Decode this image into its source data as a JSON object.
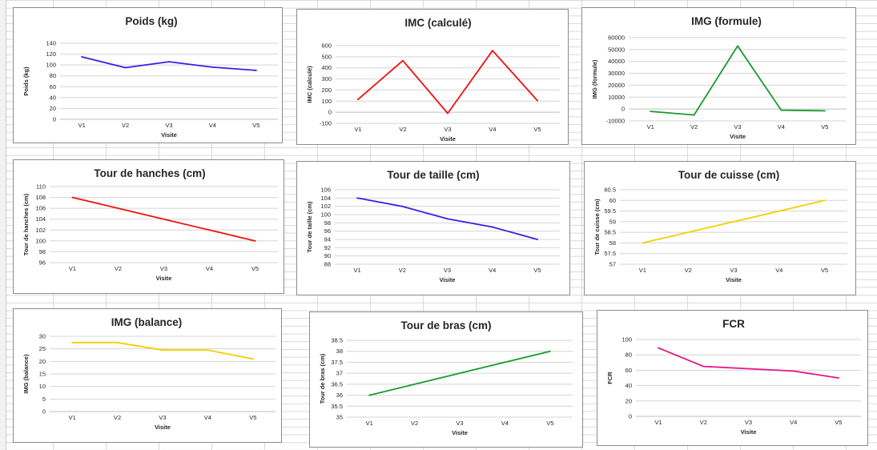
{
  "chart_data": [
    {
      "id": "poids",
      "type": "line",
      "title": "Poids (kg)",
      "xlabel": "Visite",
      "ylabel": "Poids (kg)",
      "categories": [
        "V1",
        "V2",
        "V3",
        "V4",
        "V5"
      ],
      "series": [
        {
          "values": [
            115,
            95,
            106,
            96,
            90
          ],
          "color": "#3b1ee6"
        }
      ],
      "ylim": [
        0,
        140
      ],
      "yticks": [
        0,
        20,
        40,
        60,
        80,
        100,
        120,
        140
      ],
      "ytick_labels": [
        "0",
        "20",
        "40",
        "60",
        "80",
        "100",
        "120",
        "140"
      ],
      "grid": true,
      "legend": "none"
    },
    {
      "id": "imc",
      "type": "line",
      "title": "IMC (calculé)",
      "xlabel": "Visite",
      "ylabel": "IMC (calculé)",
      "categories": [
        "V1",
        "V2",
        "V3",
        "V4",
        "V5"
      ],
      "series": [
        {
          "values": [
            115,
            465,
            -10,
            555,
            105
          ],
          "color": "#ee1111"
        }
      ],
      "ylim": [
        -100,
        600
      ],
      "yticks": [
        -100,
        0,
        100,
        200,
        300,
        400,
        500,
        600
      ],
      "ytick_labels": [
        "-100",
        "0",
        "100",
        "200",
        "300",
        "400",
        "500",
        "600"
      ],
      "grid": true,
      "legend": "none"
    },
    {
      "id": "img_formule",
      "type": "line",
      "title": "IMG (formule)",
      "xlabel": "Visite",
      "ylabel": "IMG (formule)",
      "categories": [
        "V1",
        "V2",
        "V3",
        "V4",
        "V5"
      ],
      "series": [
        {
          "values": [
            -2000,
            -5000,
            53000,
            -1000,
            -1500
          ],
          "color": "#169c2a"
        }
      ],
      "ylim": [
        -10000,
        60000
      ],
      "yticks": [
        -10000,
        0,
        10000,
        20000,
        30000,
        40000,
        50000,
        60000
      ],
      "ytick_labels": [
        "-10000",
        "0",
        "10000",
        "20000",
        "30000",
        "40000",
        "50000",
        "60000"
      ],
      "grid": true,
      "legend": "none"
    },
    {
      "id": "hanches",
      "type": "line",
      "title": "Tour de hanches (cm)",
      "xlabel": "Visite",
      "ylabel": "Tour de hanches (cm)",
      "categories": [
        "V1",
        "V2",
        "V3",
        "V4",
        "V5"
      ],
      "series": [
        {
          "values": [
            108,
            106,
            104,
            102,
            100
          ],
          "color": "#ee1111"
        }
      ],
      "ylim": [
        96,
        110
      ],
      "yticks": [
        96,
        98,
        100,
        102,
        104,
        106,
        108,
        110
      ],
      "ytick_labels": [
        "96",
        "98",
        "100",
        "102",
        "104",
        "106",
        "108",
        "110"
      ],
      "grid": true,
      "legend": "none"
    },
    {
      "id": "taille",
      "type": "line",
      "title": "Tour de taille (cm)",
      "xlabel": "Visite",
      "ylabel": "Tour de taille (cm)",
      "categories": [
        "V1",
        "V2",
        "V3",
        "V4",
        "V5"
      ],
      "series": [
        {
          "values": [
            104,
            102,
            99,
            97,
            94
          ],
          "color": "#3b1ee6"
        }
      ],
      "ylim": [
        88,
        106
      ],
      "yticks": [
        88,
        90,
        92,
        94,
        96,
        98,
        100,
        102,
        104,
        106
      ],
      "ytick_labels": [
        "88",
        "90",
        "92",
        "94",
        "96",
        "98",
        "100",
        "102",
        "104",
        "106"
      ],
      "grid": true,
      "legend": "none"
    },
    {
      "id": "cuisse",
      "type": "line",
      "title": "Tour de cuisse (cm)",
      "xlabel": "Visite",
      "ylabel": "Tour de cuisse (cm)",
      "categories": [
        "V1",
        "V2",
        "V3",
        "V4",
        "V5"
      ],
      "series": [
        {
          "values": [
            58,
            58.5,
            59,
            59.5,
            60
          ],
          "color": "#f2d000"
        }
      ],
      "ylim": [
        57,
        60.5
      ],
      "yticks": [
        57,
        57.5,
        58,
        58.5,
        59,
        59.5,
        60,
        60.5
      ],
      "ytick_labels": [
        "57",
        "57.5",
        "58",
        "58.5",
        "59",
        "59.5",
        "60",
        "60.5"
      ],
      "grid": true,
      "legend": "none"
    },
    {
      "id": "img_balance",
      "type": "line",
      "title": "IMG (balance)",
      "xlabel": "Visite",
      "ylabel": "IMG (balance)",
      "categories": [
        "V1",
        "V2",
        "V3",
        "V4",
        "V5"
      ],
      "series": [
        {
          "values": [
            27.5,
            27.5,
            24.5,
            24.5,
            21
          ],
          "color": "#f2d000"
        }
      ],
      "ylim": [
        0,
        30
      ],
      "yticks": [
        0,
        5,
        10,
        15,
        20,
        25,
        30
      ],
      "ytick_labels": [
        "0",
        "5",
        "10",
        "15",
        "20",
        "25",
        "30"
      ],
      "grid": true,
      "legend": "none"
    },
    {
      "id": "bras",
      "type": "line",
      "title": "Tour de bras (cm)",
      "xlabel": "Visite",
      "ylabel": "Tour de bras (cm)",
      "categories": [
        "V1",
        "V2",
        "V3",
        "V4",
        "V5"
      ],
      "series": [
        {
          "values": [
            36,
            36.5,
            37,
            37.5,
            38
          ],
          "color": "#169c2a"
        }
      ],
      "ylim": [
        35,
        38.5
      ],
      "yticks": [
        35,
        35.5,
        36,
        36.5,
        37,
        37.5,
        38,
        38.5
      ],
      "ytick_labels": [
        "35",
        "35.5",
        "36",
        "36.5",
        "37",
        "37.5",
        "38",
        "38.5"
      ],
      "grid": true,
      "legend": "none"
    },
    {
      "id": "fcr",
      "type": "line",
      "title": "FCR",
      "xlabel": "Visite",
      "ylabel": "FCR",
      "categories": [
        "V1",
        "V2",
        "V3",
        "V4",
        "V5"
      ],
      "series": [
        {
          "values": [
            89,
            65,
            62,
            59,
            50
          ],
          "color": "#e8128c"
        }
      ],
      "ylim": [
        0,
        100
      ],
      "yticks": [
        0,
        20,
        40,
        60,
        80,
        100
      ],
      "ytick_labels": [
        "0",
        "20",
        "40",
        "60",
        "80",
        "100"
      ],
      "grid": true,
      "legend": "none"
    }
  ]
}
